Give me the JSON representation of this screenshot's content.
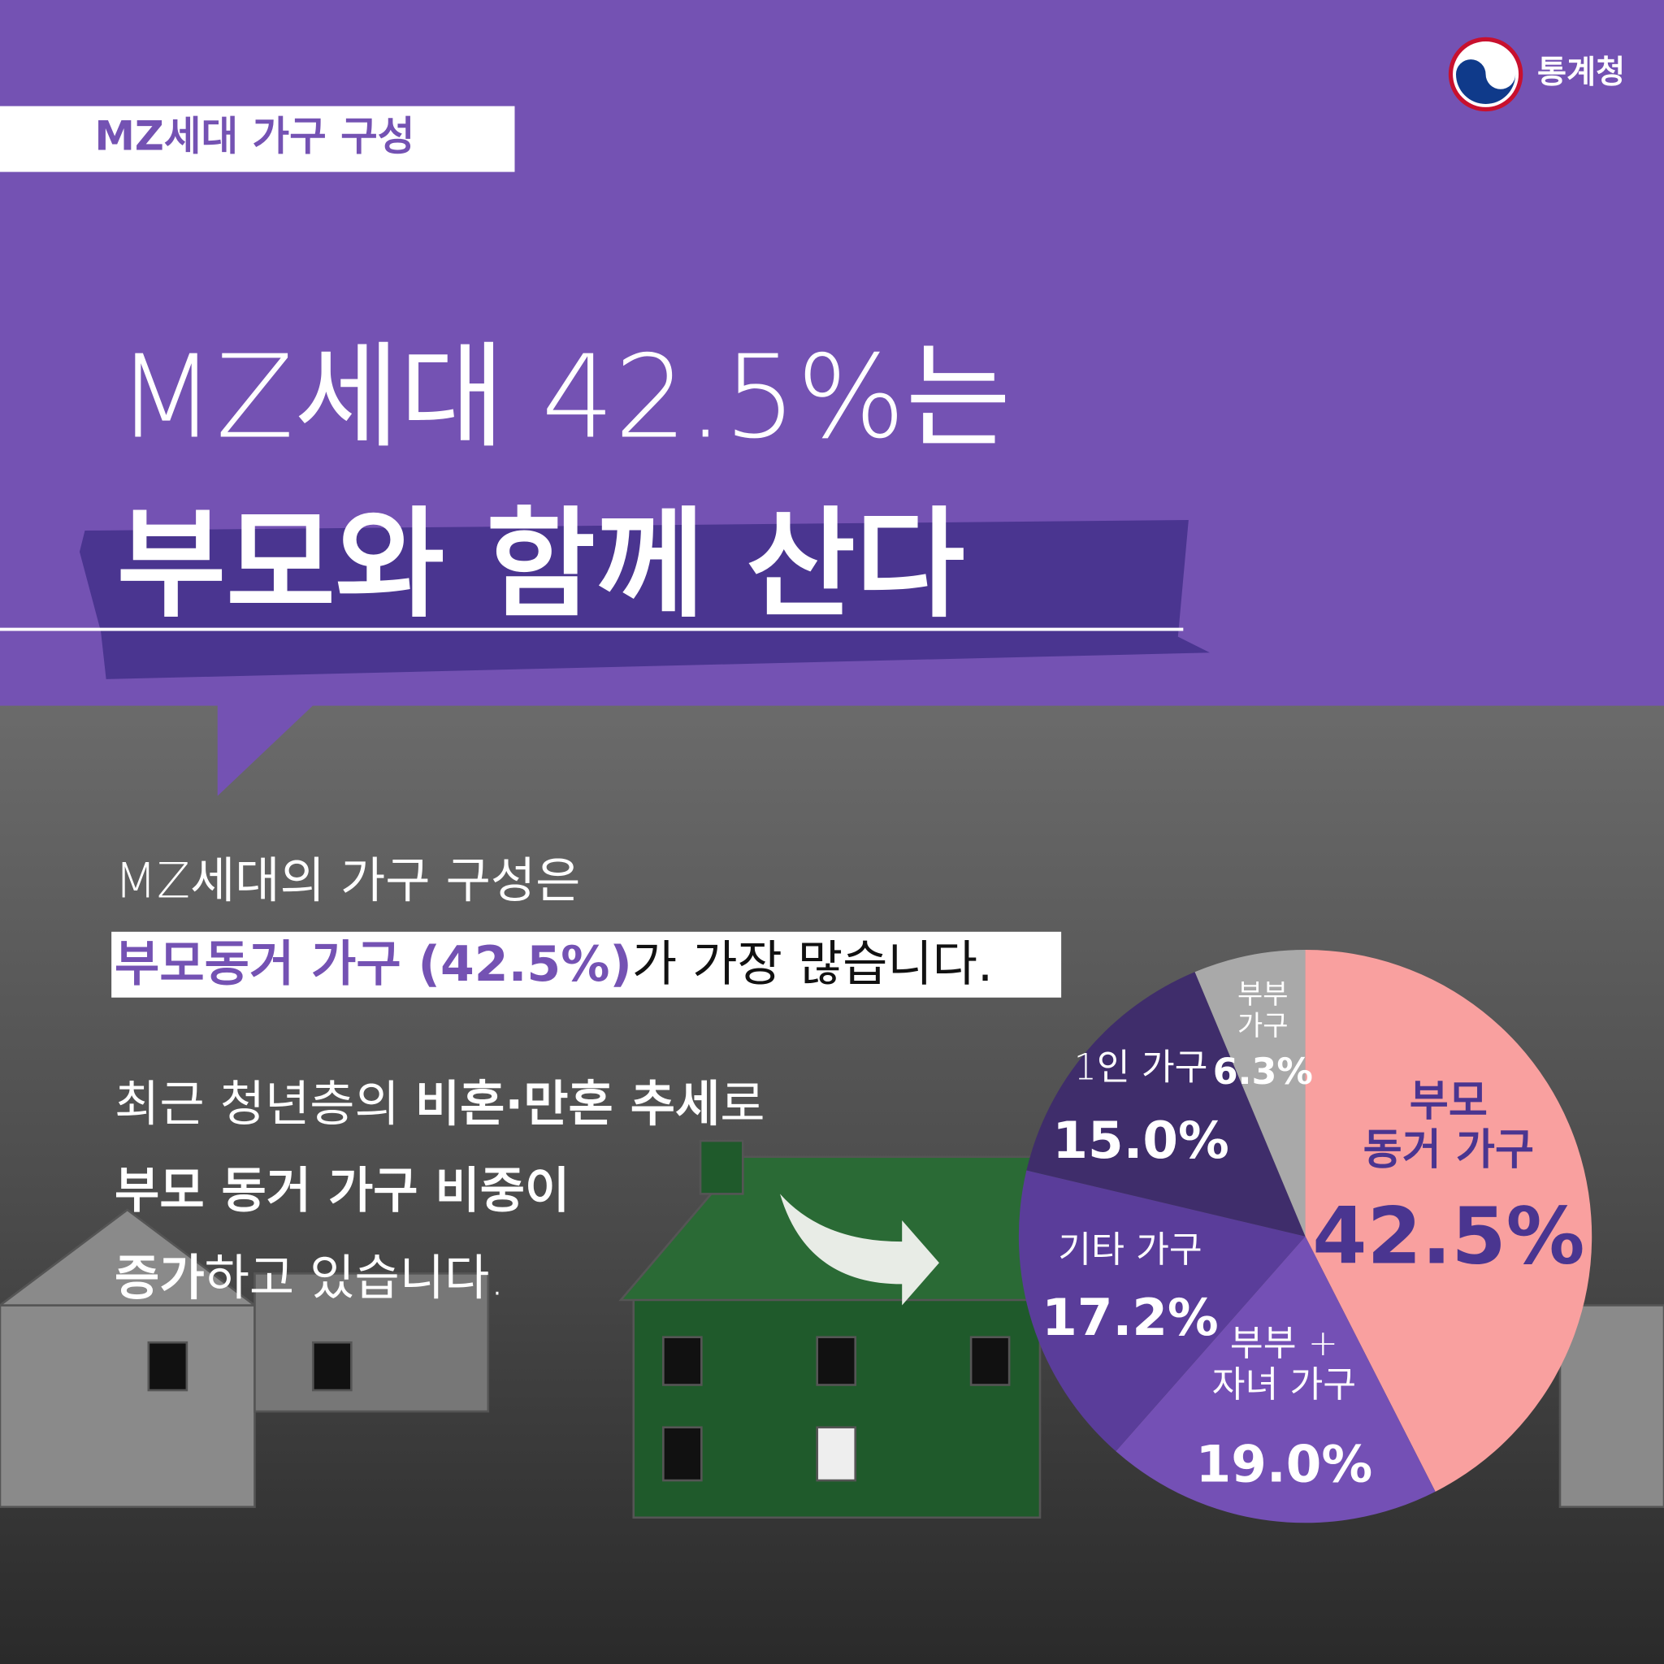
{
  "logo": "통계청",
  "tag": "MZ세대 가구 구성",
  "headline": [
    "MZ세대 42.5%는",
    "부모와 함께 산다"
  ],
  "body": {
    "intro": "MZ세대의 가구 구성은",
    "highlight": [
      "부모동거 가구 (42.5%)",
      "가 가장 많습니다."
    ],
    "lines": [
      [
        "최근 청년층의 ",
        "비혼·만혼 추세",
        "로"
      ],
      [
        "부모 동거 가구 비중이"
      ],
      [
        "증가",
        "하고 있습니다."
      ]
    ]
  },
  "chart_data": {
    "type": "pie",
    "categories": [
      "부모\n동거 가구",
      "부부 +\n자녀 가구",
      "기타 가구",
      "1인 가구",
      "부부\n가구"
    ],
    "values": [
      42.5,
      19.0,
      17.2,
      15.0,
      6.3
    ],
    "value_labels": [
      "42.5%",
      "19.0%",
      "17.2%",
      "15.0%",
      "6.3%"
    ],
    "colors": [
      "#f9a09f",
      "#7450b5",
      "#5a3d9a",
      "#3f2d6b",
      "#a9a9a9"
    ]
  }
}
